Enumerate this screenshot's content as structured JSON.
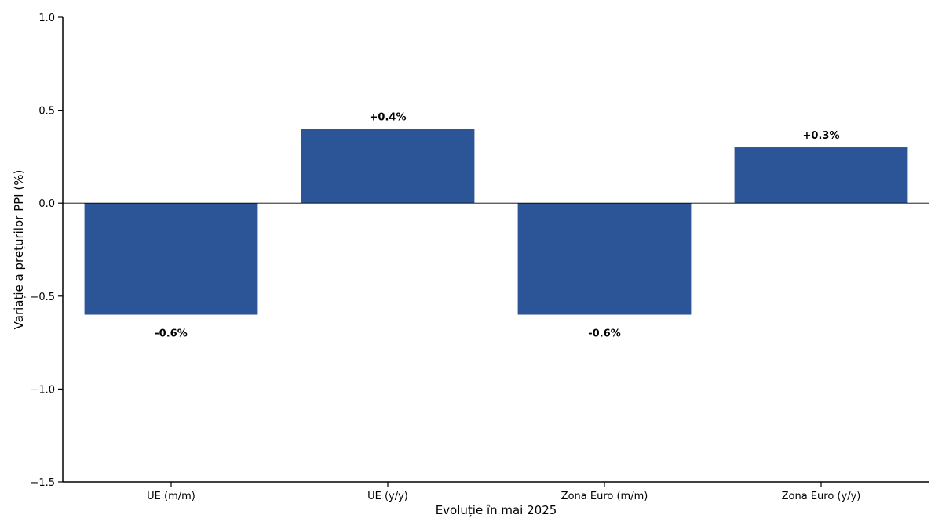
{
  "chart_data": {
    "type": "bar",
    "title": "",
    "xlabel": "Evoluție în mai 2025",
    "ylabel": "Variație a prețurilor PPI (%)",
    "categories": [
      "UE (m/m)",
      "UE (y/y)",
      "Zona Euro (m/m)",
      "Zona Euro (y/y)"
    ],
    "values": [
      -0.6,
      0.4,
      -0.6,
      0.3
    ],
    "data_labels": [
      "-0.6%",
      "+0.4%",
      "-0.6%",
      "+0.3%"
    ],
    "ylim": [
      -1.5,
      1.0
    ],
    "yticks": [
      1.0,
      0.5,
      0.0,
      -0.5,
      -1.0,
      -1.5
    ],
    "ytick_labels": [
      "1.0",
      "0.5",
      "0.0",
      "−0.5",
      "−1.0",
      "−1.5"
    ],
    "bar_color": "#2b5597",
    "zero_line": true,
    "grid": false
  }
}
